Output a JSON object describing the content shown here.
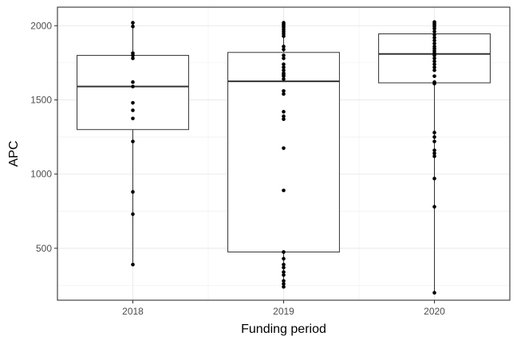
{
  "chart_data": {
    "type": "boxplot",
    "xlabel": "Funding period",
    "ylabel": "APC",
    "categories": [
      "2018",
      "2019",
      "2020"
    ],
    "y_ticks": [
      500,
      1000,
      1500,
      2000
    ],
    "ylim": [
      150,
      2125
    ],
    "grid": true,
    "legend": "none",
    "boxes": [
      {
        "category": "2018",
        "q1": 1300,
        "median": 1590,
        "q3": 1800,
        "whisker_low": 390,
        "whisker_high": 2020
      },
      {
        "category": "2019",
        "q1": 475,
        "median": 1625,
        "q3": 1820,
        "whisker_low": 240,
        "whisker_high": 2020
      },
      {
        "category": "2020",
        "q1": 1615,
        "median": 1810,
        "q3": 1945,
        "whisker_low": 200,
        "whisker_high": 2025
      }
    ],
    "points": [
      {
        "category": "2018",
        "values": [
          2020,
          1995,
          1815,
          1800,
          1780,
          1620,
          1590,
          1480,
          1430,
          1375,
          1220,
          880,
          730,
          390
        ]
      },
      {
        "category": "2019",
        "values": [
          2020,
          2010,
          2000,
          1990,
          1975,
          1960,
          1945,
          1930,
          1860,
          1840,
          1800,
          1780,
          1740,
          1720,
          1700,
          1680,
          1670,
          1660,
          1640,
          1560,
          1540,
          1420,
          1390,
          1370,
          1175,
          890,
          475,
          430,
          390,
          370,
          340,
          320,
          280,
          260,
          240
        ]
      },
      {
        "category": "2020",
        "values": [
          2025,
          2015,
          2005,
          1995,
          1980,
          1960,
          1940,
          1920,
          1900,
          1880,
          1860,
          1845,
          1830,
          1815,
          1800,
          1780,
          1760,
          1740,
          1720,
          1700,
          1660,
          1620,
          1610,
          1280,
          1250,
          1220,
          1160,
          1140,
          1120,
          970,
          780,
          200
        ]
      }
    ],
    "colors": {
      "panel_border": "#333333",
      "grid_major": "#ebebeb",
      "box_line": "#333333",
      "point": "#000000",
      "tick_label": "#4d4d4d"
    }
  }
}
